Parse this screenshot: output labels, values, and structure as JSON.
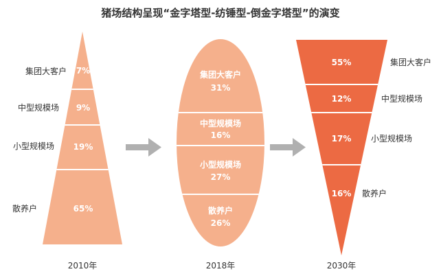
{
  "title": "猪场结构呈现“金字塔型-纺锤型-倒金字塔型”的演变",
  "colors": {
    "light": "#F5B08C",
    "dark": "#EC6A43",
    "divider": "#ffffff",
    "arrow": "#B0B0B0",
    "text": "#333333"
  },
  "panels": [
    {
      "year": "2010年",
      "shape": "pyramid",
      "segments": [
        {
          "label": "集团大客户",
          "value": "7%"
        },
        {
          "label": "中型规模场",
          "value": "9%"
        },
        {
          "label": "小型规模场",
          "value": "19%"
        },
        {
          "label": "散养户",
          "value": "65%"
        }
      ]
    },
    {
      "year": "2018年",
      "shape": "spindle",
      "segments": [
        {
          "label": "集团大客户",
          "value": "31%"
        },
        {
          "label": "中型规模场",
          "value": "16%"
        },
        {
          "label": "小型规模场",
          "value": "27%"
        },
        {
          "label": "散养户",
          "value": "26%"
        }
      ]
    },
    {
      "year": "2030年",
      "shape": "inverted-pyramid",
      "segments": [
        {
          "label": "集团大客户",
          "value": "55%"
        },
        {
          "label": "中型规模场",
          "value": "12%"
        },
        {
          "label": "小型规模场",
          "value": "17%"
        },
        {
          "label": "散养户",
          "value": "16%"
        }
      ]
    }
  ]
}
